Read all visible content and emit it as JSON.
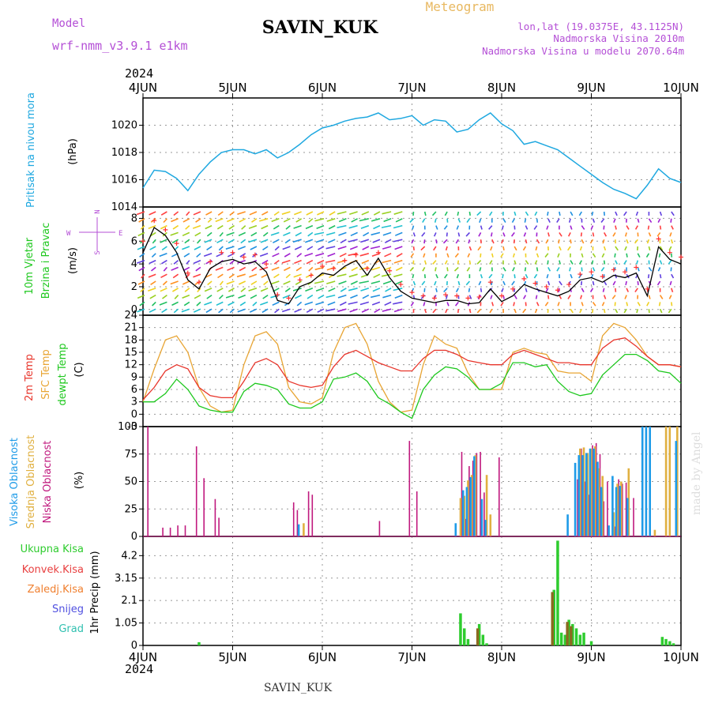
{
  "header": {
    "model_label": "Model",
    "model_name": "wrf-nmm_v3.9.1  e1km",
    "station": "SAVIN_KUK",
    "meteogram": "Meteogram",
    "lonlat": "lon,lat (19.0375E, 43.1125N)",
    "altitude": "Nadmorska Visina 2010m",
    "model_altitude": "Nadmorska Visina u modelu 2070.64m",
    "year_top": "2024",
    "year_bottom": "2024",
    "footer_station": "SAVIN_KUK",
    "credit": "made by Angel"
  },
  "colors": {
    "pressure": "#1fa8e0",
    "wind_speed": "#000000",
    "wind_gust": "#ff3030",
    "temp2m": "#e8352b",
    "sfc_temp": "#e8a534",
    "dewpt": "#1ec81e",
    "cloud_high": "#1e9be8",
    "cloud_mid": "#e0b040",
    "cloud_low": "#c0197e",
    "precip_total": "#2ecc2e",
    "precip_conv": "#e84040",
    "precip_frozen": "#f08030",
    "precip_snow": "#5050e0",
    "precip_graupel": "#30c0b0"
  },
  "chart_data": [
    {
      "type": "line",
      "panel": "pressure",
      "ylabel": "Pritisak na nivou mora",
      "unit": "(hPa)",
      "x_categories": [
        "4JUN",
        "5JUN",
        "6JUN",
        "7JUN",
        "8JUN",
        "9JUN",
        "10JUN"
      ],
      "ylim": [
        1014,
        1022
      ],
      "yticks": [
        1014,
        1016,
        1018,
        1020
      ],
      "x_hours": [
        0,
        3,
        6,
        9,
        12,
        15,
        18,
        21,
        24,
        27,
        30,
        33,
        36,
        39,
        42,
        45,
        48,
        51,
        54,
        57,
        60,
        63,
        66,
        69,
        72,
        75,
        78,
        81,
        84,
        87,
        90,
        93,
        96,
        99,
        102,
        105,
        108,
        111,
        114,
        117,
        120,
        123,
        126,
        129,
        132,
        135,
        138,
        141,
        144
      ],
      "series": [
        {
          "values": [
            1015.4,
            1016.7,
            1016.6,
            1016.1,
            1015.2,
            1016.4,
            1017.3,
            1018.0,
            1018.2,
            1018.2,
            1017.9,
            1018.2,
            1017.6,
            1018.0,
            1018.6,
            1019.3,
            1019.8,
            1020.0,
            1020.3,
            1020.5,
            1020.6,
            1020.9,
            1020.4,
            1020.5,
            1020.7,
            1020.0,
            1020.4,
            1020.3,
            1019.5,
            1019.7,
            1020.4,
            1020.9,
            1020.1,
            1019.6,
            1018.6,
            1018.8,
            1018.5,
            1018.2,
            1017.6,
            1017.0,
            1016.4,
            1015.8,
            1015.3,
            1015.0,
            1014.6,
            1015.6,
            1016.8,
            1016.1,
            1015.8
          ]
        }
      ]
    },
    {
      "type": "line",
      "panel": "wind",
      "ylabel": "10m Vjetar Brzina i Pravac",
      "unit": "(m/s)",
      "compass_labels": [
        "N",
        "S",
        "W",
        "E"
      ],
      "ylim": [
        -0.5,
        9
      ],
      "yticks": [
        0,
        2,
        4,
        6,
        8
      ],
      "x_hours": [
        0,
        3,
        6,
        9,
        12,
        15,
        18,
        21,
        24,
        27,
        30,
        33,
        36,
        39,
        42,
        45,
        48,
        51,
        54,
        57,
        60,
        63,
        66,
        69,
        72,
        75,
        78,
        81,
        84,
        87,
        90,
        93,
        96,
        99,
        102,
        105,
        108,
        111,
        114,
        117,
        120,
        123,
        126,
        129,
        132,
        135,
        138,
        141,
        144
      ],
      "series": [
        {
          "name": "speed",
          "values": [
            5.0,
            7.2,
            6.5,
            5.0,
            2.6,
            1.8,
            3.6,
            4.2,
            4.4,
            4.0,
            4.2,
            3.3,
            0.8,
            0.5,
            2.0,
            2.4,
            3.2,
            3.0,
            3.8,
            4.3,
            3.0,
            4.5,
            2.8,
            1.6,
            1.0,
            0.8,
            0.6,
            0.8,
            0.8,
            0.5,
            0.6,
            1.8,
            0.7,
            1.2,
            2.2,
            1.8,
            1.5,
            1.2,
            1.6,
            2.6,
            2.8,
            2.4,
            3.0,
            2.8,
            3.2,
            1.2,
            5.5,
            4.4,
            4.0
          ]
        },
        {
          "name": "gust",
          "values": [
            6.0,
            7.8,
            7.0,
            5.8,
            3.2,
            2.4,
            4.2,
            5.0,
            5.0,
            4.6,
            4.8,
            4.0,
            1.3,
            1.0,
            2.6,
            3.0,
            3.8,
            3.6,
            4.3,
            4.8,
            3.6,
            5.0,
            3.4,
            2.2,
            1.5,
            1.2,
            1.0,
            1.3,
            1.2,
            1.0,
            1.1,
            2.4,
            1.2,
            1.8,
            2.7,
            2.3,
            2.0,
            1.7,
            2.2,
            3.1,
            3.3,
            2.9,
            3.5,
            3.3,
            3.7,
            1.8,
            6.2,
            5.0,
            4.6
          ]
        }
      ],
      "barb_direction_deg_by_day": [
        240,
        235,
        225,
        265,
        270,
        270,
        250
      ]
    },
    {
      "type": "line",
      "panel": "temperature",
      "ylabel_lines": [
        "2m Temp",
        "SFC Temp",
        "dewpt Temp"
      ],
      "unit": "(C)",
      "ylim": [
        -3,
        24
      ],
      "yticks": [
        -3,
        0,
        3,
        6,
        9,
        12,
        15,
        18,
        21,
        24
      ],
      "x_hours": [
        0,
        3,
        6,
        9,
        12,
        15,
        18,
        21,
        24,
        27,
        30,
        33,
        36,
        39,
        42,
        45,
        48,
        51,
        54,
        57,
        60,
        63,
        66,
        69,
        72,
        75,
        78,
        81,
        84,
        87,
        90,
        93,
        96,
        99,
        102,
        105,
        108,
        111,
        114,
        117,
        120,
        123,
        126,
        129,
        132,
        135,
        138,
        141,
        144
      ],
      "series": [
        {
          "name": "2m Temp",
          "values": [
            3.5,
            6.5,
            10.5,
            12.0,
            11.0,
            6.5,
            4.5,
            4.0,
            4.0,
            8.0,
            12.5,
            13.5,
            12.0,
            8.0,
            7.0,
            6.5,
            7.0,
            11.5,
            14.5,
            15.5,
            14.0,
            12.5,
            11.5,
            10.5,
            10.5,
            13.5,
            15.5,
            15.5,
            14.5,
            13.0,
            12.5,
            12.0,
            12.0,
            14.5,
            15.5,
            14.5,
            13.5,
            12.5,
            12.5,
            12.0,
            12.0,
            16.0,
            18.0,
            18.5,
            16.5,
            14.0,
            12.0,
            12.0,
            11.5
          ]
        },
        {
          "name": "SFC Temp",
          "values": [
            3.0,
            11.0,
            18.0,
            19.0,
            15.0,
            6.5,
            2.0,
            0.5,
            1.0,
            12.0,
            19.0,
            20.0,
            17.0,
            6.5,
            3.0,
            2.5,
            4.0,
            15.0,
            21.0,
            22.0,
            17.0,
            8.0,
            3.0,
            0.5,
            1.0,
            12.0,
            19.0,
            17.0,
            16.0,
            10.0,
            6.0,
            6.0,
            6.0,
            15.0,
            16.0,
            15.0,
            14.5,
            10.5,
            10.0,
            10.0,
            8.0,
            19.0,
            22.0,
            21.0,
            18.0,
            14.0,
            12.0,
            12.0,
            11.5
          ]
        },
        {
          "name": "dewpt Temp",
          "values": [
            3.0,
            3.0,
            5.0,
            8.5,
            6.0,
            2.0,
            1.0,
            0.5,
            0.5,
            5.5,
            7.5,
            7.0,
            6.0,
            2.5,
            1.5,
            1.5,
            3.0,
            8.5,
            9.0,
            10.0,
            8.0,
            4.0,
            2.5,
            0.5,
            -1.0,
            6.0,
            9.5,
            11.5,
            11.0,
            9.0,
            6.0,
            6.0,
            7.5,
            12.5,
            12.5,
            11.5,
            12.0,
            8.0,
            5.5,
            4.5,
            5.0,
            9.5,
            12.0,
            14.5,
            14.5,
            13.0,
            10.5,
            10.0,
            7.5
          ]
        }
      ]
    },
    {
      "type": "bar",
      "panel": "clouds",
      "ylabel_lines": [
        "Visoka Oblacnost",
        "Srednja Oblacnost",
        "Niska Oblacnost"
      ],
      "unit": "(%)",
      "ylim": [
        0,
        100
      ],
      "yticks": [
        0,
        25,
        50,
        75,
        100
      ],
      "series": [
        {
          "name": "Niska Oblacnost",
          "points": [
            [
              1,
              100
            ],
            [
              5,
              8
            ],
            [
              7,
              8
            ],
            [
              9,
              10
            ],
            [
              11,
              10
            ],
            [
              14,
              82
            ],
            [
              16,
              53
            ],
            [
              19,
              34
            ],
            [
              20,
              17
            ],
            [
              40,
              31
            ],
            [
              41,
              24
            ],
            [
              44,
              41
            ],
            [
              45,
              38
            ],
            [
              63,
              14
            ],
            [
              71,
              87
            ],
            [
              73,
              41
            ],
            [
              85,
              77
            ],
            [
              86,
              16
            ],
            [
              87,
              64
            ],
            [
              88,
              69
            ],
            [
              89,
              76
            ],
            [
              90,
              77
            ],
            [
              91,
              40
            ],
            [
              95,
              72
            ],
            [
              116,
              52
            ],
            [
              117,
              80
            ],
            [
              118,
              50
            ],
            [
              119,
              38
            ],
            [
              120,
              83
            ],
            [
              121,
              85
            ],
            [
              122,
              75
            ],
            [
              123,
              32
            ],
            [
              124,
              50
            ],
            [
              126,
              9
            ],
            [
              127,
              52
            ],
            [
              128,
              48
            ],
            [
              129,
              49
            ],
            [
              131,
              35
            ]
          ]
        },
        {
          "name": "Srednja Oblacnost",
          "points": [
            [
              43,
              12
            ],
            [
              85,
              35
            ],
            [
              86,
              37
            ],
            [
              87,
              51
            ],
            [
              88,
              56
            ],
            [
              89,
              74
            ],
            [
              92,
              56
            ],
            [
              93,
              20
            ],
            [
              117,
              80
            ],
            [
              118,
              81
            ],
            [
              119,
              76
            ],
            [
              120,
              80
            ],
            [
              121,
              82
            ],
            [
              122,
              62
            ],
            [
              123,
              55
            ],
            [
              126,
              22
            ],
            [
              127,
              48
            ],
            [
              128,
              50
            ],
            [
              130,
              62
            ],
            [
              137,
              6
            ],
            [
              140,
              100
            ],
            [
              141,
              100
            ],
            [
              143,
              100
            ]
          ]
        },
        {
          "name": "Visoka Oblacnost",
          "points": [
            [
              42,
              11
            ],
            [
              84,
              12
            ],
            [
              86,
              42
            ],
            [
              87,
              45
            ],
            [
              88,
              54
            ],
            [
              89,
              73
            ],
            [
              91,
              34
            ],
            [
              92,
              15
            ],
            [
              114,
              20
            ],
            [
              116,
              67
            ],
            [
              117,
              74
            ],
            [
              118,
              74
            ],
            [
              119,
              76
            ],
            [
              120,
              80
            ],
            [
              121,
              80
            ],
            [
              122,
              68
            ],
            [
              123,
              45
            ],
            [
              125,
              10
            ],
            [
              126,
              55
            ],
            [
              127,
              45
            ],
            [
              128,
              46
            ],
            [
              130,
              35
            ],
            [
              134,
              100
            ],
            [
              135,
              100
            ],
            [
              136,
              100
            ],
            [
              143,
              87
            ]
          ]
        }
      ]
    },
    {
      "type": "bar",
      "panel": "precip",
      "legend": [
        "Ukupna Kisa",
        "Konvek.Kisa",
        "Zaledj.Kisa",
        "Snijeg",
        "Grad"
      ],
      "unit": "1hr Precip (mm)",
      "ylim": [
        0,
        5.1
      ],
      "yticks": [
        0,
        1.05,
        2.1,
        3.15,
        4.2
      ],
      "series": [
        {
          "name": "Ukupna Kisa",
          "points": [
            [
              15,
              0.15
            ],
            [
              85,
              1.5
            ],
            [
              86,
              0.8
            ],
            [
              87,
              0.3
            ],
            [
              90,
              1.0
            ],
            [
              91,
              0.5
            ],
            [
              92,
              0.1
            ],
            [
              110,
              2.6
            ],
            [
              111,
              4.9
            ],
            [
              112,
              0.6
            ],
            [
              113,
              0.5
            ],
            [
              114,
              1.2
            ],
            [
              115,
              1.0
            ],
            [
              116,
              0.8
            ],
            [
              117,
              0.5
            ],
            [
              118,
              0.6
            ],
            [
              120,
              0.2
            ],
            [
              139,
              0.4
            ],
            [
              140,
              0.3
            ],
            [
              141,
              0.2
            ],
            [
              142,
              0.1
            ]
          ]
        },
        {
          "name": "Konvek.Kisa",
          "points": [
            [
              90,
              0.8
            ],
            [
              110,
              2.5
            ],
            [
              114,
              1.1
            ],
            [
              115,
              0.9
            ]
          ]
        }
      ]
    }
  ]
}
